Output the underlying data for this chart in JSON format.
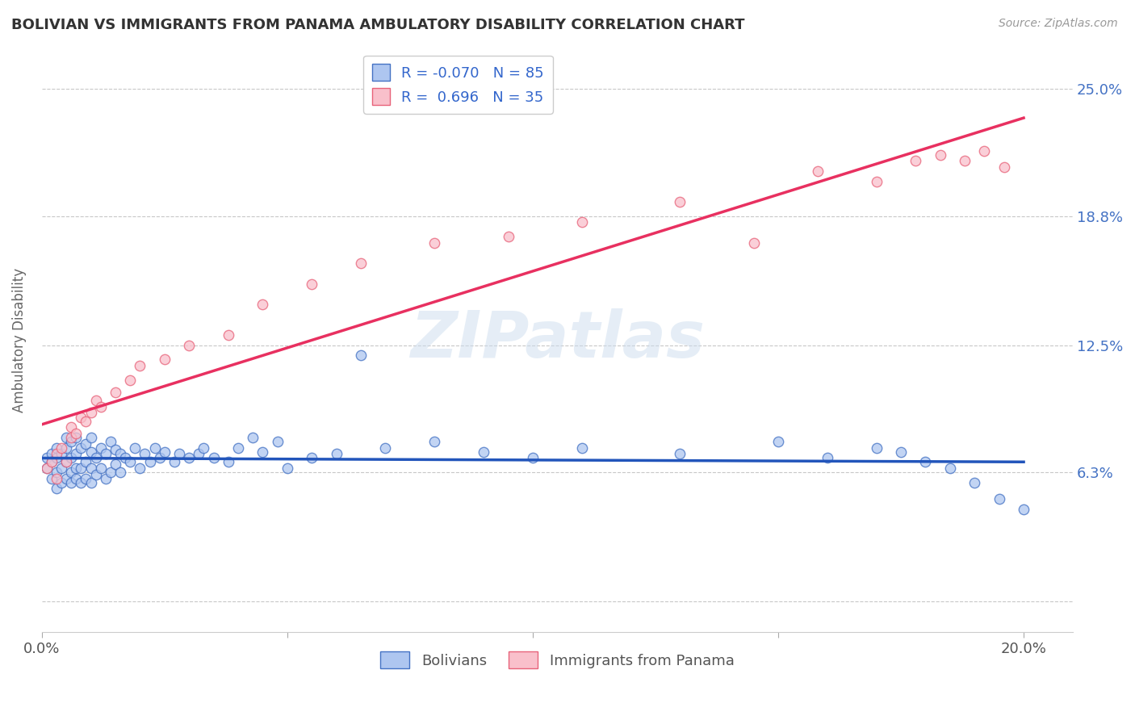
{
  "title": "BOLIVIAN VS IMMIGRANTS FROM PANAMA AMBULATORY DISABILITY CORRELATION CHART",
  "source": "Source: ZipAtlas.com",
  "ylabel": "Ambulatory Disability",
  "legend_label_1": "Bolivians",
  "legend_label_2": "Immigrants from Panama",
  "R1": -0.07,
  "N1": 85,
  "R2": 0.696,
  "N2": 35,
  "color_blue": "#AEC6F0",
  "color_pink": "#F9C0CB",
  "edge_blue": "#4472C4",
  "edge_pink": "#E8637A",
  "trend_blue": "#2255BB",
  "trend_pink": "#E83060",
  "xlim": [
    0.0,
    0.21
  ],
  "ylim": [
    -0.015,
    0.27
  ],
  "yticks": [
    0.0,
    0.063,
    0.125,
    0.188,
    0.25
  ],
  "ytick_labels": [
    "",
    "6.3%",
    "12.5%",
    "18.8%",
    "25.0%"
  ],
  "xticks": [
    0.0,
    0.05,
    0.1,
    0.15,
    0.2
  ],
  "xtick_labels": [
    "0.0%",
    "",
    "",
    "",
    "20.0%"
  ],
  "background_color": "#FFFFFF",
  "grid_color": "#C8C8C8",
  "bolivians_x": [
    0.001,
    0.001,
    0.002,
    0.002,
    0.002,
    0.003,
    0.003,
    0.003,
    0.003,
    0.004,
    0.004,
    0.004,
    0.005,
    0.005,
    0.005,
    0.005,
    0.006,
    0.006,
    0.006,
    0.006,
    0.007,
    0.007,
    0.007,
    0.007,
    0.008,
    0.008,
    0.008,
    0.009,
    0.009,
    0.009,
    0.01,
    0.01,
    0.01,
    0.01,
    0.011,
    0.011,
    0.012,
    0.012,
    0.013,
    0.013,
    0.014,
    0.014,
    0.015,
    0.015,
    0.016,
    0.016,
    0.017,
    0.018,
    0.019,
    0.02,
    0.021,
    0.022,
    0.023,
    0.024,
    0.025,
    0.027,
    0.028,
    0.03,
    0.032,
    0.033,
    0.035,
    0.038,
    0.04,
    0.043,
    0.045,
    0.048,
    0.05,
    0.055,
    0.06,
    0.065,
    0.07,
    0.08,
    0.09,
    0.1,
    0.11,
    0.13,
    0.15,
    0.16,
    0.17,
    0.175,
    0.18,
    0.185,
    0.19,
    0.195,
    0.2
  ],
  "bolivians_y": [
    0.065,
    0.07,
    0.06,
    0.068,
    0.072,
    0.055,
    0.063,
    0.07,
    0.075,
    0.058,
    0.065,
    0.072,
    0.06,
    0.068,
    0.075,
    0.08,
    0.058,
    0.063,
    0.07,
    0.078,
    0.06,
    0.065,
    0.072,
    0.08,
    0.058,
    0.065,
    0.075,
    0.06,
    0.068,
    0.077,
    0.058,
    0.065,
    0.073,
    0.08,
    0.062,
    0.07,
    0.065,
    0.075,
    0.06,
    0.072,
    0.063,
    0.078,
    0.067,
    0.074,
    0.063,
    0.072,
    0.07,
    0.068,
    0.075,
    0.065,
    0.072,
    0.068,
    0.075,
    0.07,
    0.073,
    0.068,
    0.072,
    0.07,
    0.072,
    0.075,
    0.07,
    0.068,
    0.075,
    0.08,
    0.073,
    0.078,
    0.065,
    0.07,
    0.072,
    0.12,
    0.075,
    0.078,
    0.073,
    0.07,
    0.075,
    0.072,
    0.078,
    0.07,
    0.075,
    0.073,
    0.068,
    0.065,
    0.058,
    0.05,
    0.045
  ],
  "panama_x": [
    0.001,
    0.002,
    0.003,
    0.003,
    0.004,
    0.005,
    0.006,
    0.006,
    0.007,
    0.008,
    0.009,
    0.01,
    0.011,
    0.012,
    0.015,
    0.018,
    0.02,
    0.025,
    0.03,
    0.038,
    0.045,
    0.055,
    0.065,
    0.08,
    0.095,
    0.11,
    0.13,
    0.145,
    0.158,
    0.17,
    0.178,
    0.183,
    0.188,
    0.192,
    0.196
  ],
  "panama_y": [
    0.065,
    0.068,
    0.06,
    0.072,
    0.075,
    0.068,
    0.08,
    0.085,
    0.082,
    0.09,
    0.088,
    0.092,
    0.098,
    0.095,
    0.102,
    0.108,
    0.115,
    0.118,
    0.125,
    0.13,
    0.145,
    0.155,
    0.165,
    0.175,
    0.178,
    0.185,
    0.195,
    0.175,
    0.21,
    0.205,
    0.215,
    0.218,
    0.215,
    0.22,
    0.212
  ]
}
